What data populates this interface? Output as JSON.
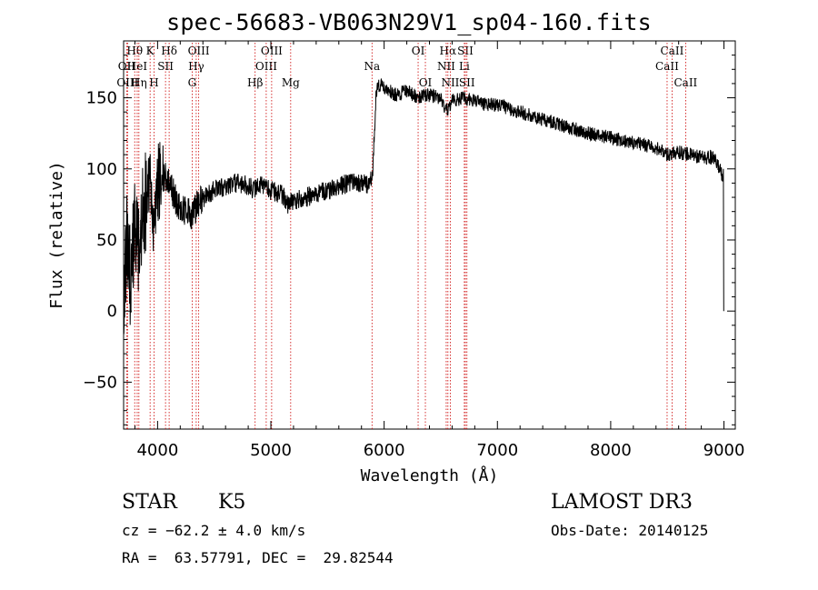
{
  "title": "spec-56683-VB063N29V1_sp04-160.fits",
  "info": {
    "class": "STAR",
    "subclass": "K5",
    "cz": "cz = −62.2 ± 4.0 km/s",
    "coords": "RA =  63.57791, DEC =  29.82544",
    "survey": "LAMOST DR3",
    "obsdate": "Obs-Date: 20140125"
  },
  "chart_data": {
    "type": "line",
    "xlabel": "Wavelength (Å)",
    "ylabel": "Flux (relative)",
    "xlim": [
      3700,
      9100
    ],
    "ylim": [
      -83,
      190
    ],
    "xticks": [
      4000,
      5000,
      6000,
      7000,
      8000,
      9000
    ],
    "yticks": [
      -50,
      0,
      50,
      100,
      150
    ],
    "grid": false,
    "line_color": "#000000",
    "marker_color": "#cc0000",
    "spectrum_anchors": [
      [
        3700,
        20
      ],
      [
        3730,
        55
      ],
      [
        3760,
        20
      ],
      [
        3790,
        60
      ],
      [
        3820,
        40
      ],
      [
        3850,
        70
      ],
      [
        3880,
        55
      ],
      [
        3910,
        95
      ],
      [
        3940,
        85
      ],
      [
        3970,
        45
      ],
      [
        4000,
        90
      ],
      [
        4050,
        95
      ],
      [
        4100,
        92
      ],
      [
        4150,
        80
      ],
      [
        4200,
        70
      ],
      [
        4250,
        72
      ],
      [
        4300,
        65
      ],
      [
        4350,
        75
      ],
      [
        4400,
        78
      ],
      [
        4450,
        82
      ],
      [
        4500,
        85
      ],
      [
        4600,
        88
      ],
      [
        4700,
        90
      ],
      [
        4800,
        88
      ],
      [
        4850,
        85
      ],
      [
        4900,
        90
      ],
      [
        5000,
        85
      ],
      [
        5100,
        82
      ],
      [
        5150,
        75
      ],
      [
        5200,
        78
      ],
      [
        5300,
        80
      ],
      [
        5400,
        82
      ],
      [
        5500,
        85
      ],
      [
        5600,
        88
      ],
      [
        5700,
        90
      ],
      [
        5800,
        90
      ],
      [
        5870,
        88
      ],
      [
        5900,
        100
      ],
      [
        5930,
        155
      ],
      [
        5970,
        160
      ],
      [
        6000,
        158
      ],
      [
        6100,
        152
      ],
      [
        6200,
        155
      ],
      [
        6300,
        150
      ],
      [
        6400,
        152
      ],
      [
        6500,
        150
      ],
      [
        6560,
        140
      ],
      [
        6600,
        148
      ],
      [
        6700,
        150
      ],
      [
        6800,
        148
      ],
      [
        6900,
        145
      ],
      [
        7000,
        145
      ],
      [
        7200,
        140
      ],
      [
        7400,
        135
      ],
      [
        7600,
        130
      ],
      [
        7800,
        125
      ],
      [
        8000,
        122
      ],
      [
        8200,
        118
      ],
      [
        8400,
        115
      ],
      [
        8500,
        110
      ],
      [
        8600,
        112
      ],
      [
        8700,
        110
      ],
      [
        8800,
        108
      ],
      [
        8900,
        108
      ],
      [
        8950,
        102
      ],
      [
        8990,
        95
      ]
    ],
    "lines": [
      {
        "label": "OII",
        "wave": 3727,
        "row": 1
      },
      {
        "label": "Hθ",
        "wave": 3798,
        "row": 0
      },
      {
        "label": "OIII",
        "wave": 3735,
        "row": 2
      },
      {
        "label": "HeI",
        "wave": 3820,
        "row": 1
      },
      {
        "label": "Hη",
        "wave": 3835,
        "row": 2
      },
      {
        "label": "K",
        "wave": 3934,
        "row": 0
      },
      {
        "label": "SII",
        "wave": 4070,
        "row": 1
      },
      {
        "label": "H",
        "wave": 3969,
        "row": 2
      },
      {
        "label": "Hδ",
        "wave": 4102,
        "row": 0
      },
      {
        "label": "OIII",
        "wave": 4363,
        "row": 0
      },
      {
        "label": "Hγ",
        "wave": 4341,
        "row": 1
      },
      {
        "label": "G",
        "wave": 4305,
        "row": 2
      },
      {
        "label": "OIII",
        "wave": 5007,
        "row": 0
      },
      {
        "label": "OIII",
        "wave": 4959,
        "row": 1
      },
      {
        "label": "Hβ",
        "wave": 4861,
        "row": 2
      },
      {
        "label": "Mg",
        "wave": 5175,
        "row": 2
      },
      {
        "label": "Na",
        "wave": 5893,
        "row": 1
      },
      {
        "label": "OI",
        "wave": 6300,
        "row": 0
      },
      {
        "label": "OI",
        "wave": 6364,
        "row": 2
      },
      {
        "label": "Hα",
        "wave": 6563,
        "row": 0
      },
      {
        "label": "SII",
        "wave": 6717,
        "row": 0
      },
      {
        "label": "NII",
        "wave": 6548,
        "row": 1
      },
      {
        "label": "Li",
        "wave": 6708,
        "row": 1
      },
      {
        "label": "NII",
        "wave": 6584,
        "row": 2
      },
      {
        "label": "SII",
        "wave": 6731,
        "row": 2
      },
      {
        "label": "CaII",
        "wave": 8542,
        "row": 0
      },
      {
        "label": "CaII",
        "wave": 8498,
        "row": 1
      },
      {
        "label": "CaII",
        "wave": 8662,
        "row": 2
      }
    ]
  }
}
